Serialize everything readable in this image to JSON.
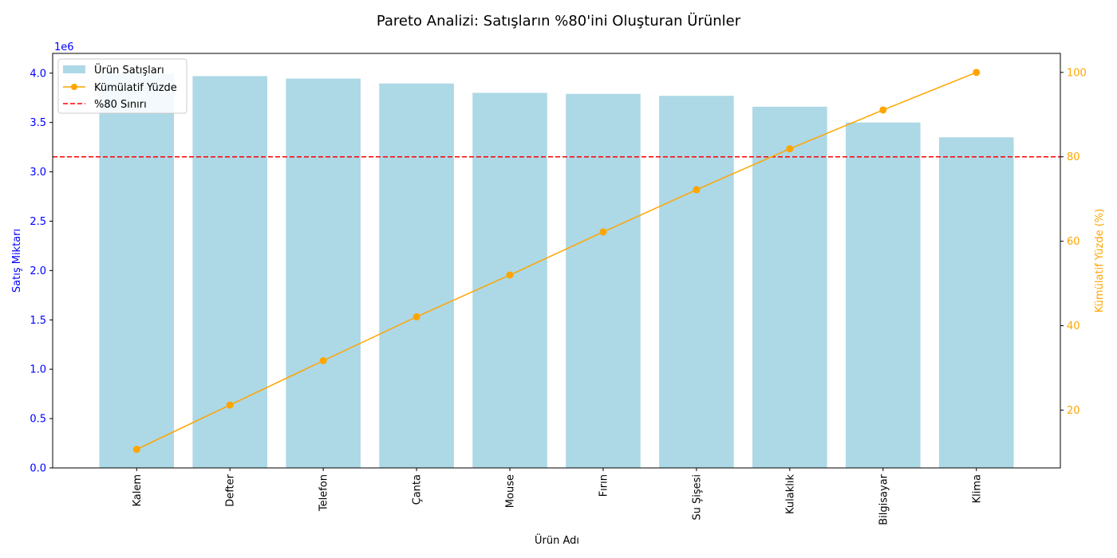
{
  "chart_data": {
    "type": "bar",
    "title": "Pareto Analizi: Satışların %80'ini Oluşturan Ürünler",
    "xlabel": "Ürün Adı",
    "ylabel": "Satış Miktarı",
    "y2label": "Kümülatif Yüzde (%)",
    "y_offset_label": "1e6",
    "ylim": [
      0,
      4200000
    ],
    "y2lim": [
      6.3,
      104.5
    ],
    "yticks": [
      0,
      500000,
      1000000,
      1500000,
      2000000,
      2500000,
      3000000,
      3500000,
      4000000
    ],
    "ytick_labels": [
      "0.0",
      "0.5",
      "1.0",
      "1.5",
      "2.0",
      "2.5",
      "3.0",
      "3.5",
      "4.0"
    ],
    "y2ticks": [
      20,
      40,
      60,
      80,
      100
    ],
    "y2tick_labels": [
      "20",
      "40",
      "60",
      "80",
      "100"
    ],
    "categories": [
      "Kalem",
      "Defter",
      "Telefon",
      "Çanta",
      "Mouse",
      "Fırın",
      "Su Şişesi",
      "Kulaklık",
      "Bilgisayar",
      "Klima"
    ],
    "series": [
      {
        "name": "Ürün Satışları",
        "kind": "bar",
        "axis": "left",
        "color": "#add8e6",
        "values": [
          4000000,
          3970000,
          3945000,
          3895000,
          3800000,
          3790000,
          3770000,
          3660000,
          3500000,
          3350000
        ]
      },
      {
        "name": "Kümülatif Yüzde",
        "kind": "line",
        "axis": "right",
        "color": "#ffa500",
        "marker": "circle",
        "values": [
          10.7,
          21.2,
          31.7,
          42.1,
          52.0,
          62.2,
          72.2,
          81.9,
          91.1,
          100.0
        ]
      }
    ],
    "threshold": {
      "name": "%80 Sınırı",
      "value": 80,
      "axis": "right",
      "color": "#ff0000",
      "style": "dashed"
    },
    "left_axis_color": "#0000ff",
    "right_axis_color": "#ffa500",
    "legend": "top-left",
    "grid": false
  }
}
